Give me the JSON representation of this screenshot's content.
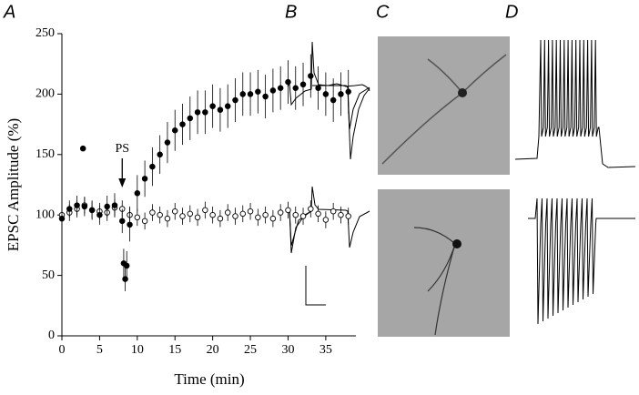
{
  "panel_labels": [
    "A",
    "B",
    "C",
    "D"
  ],
  "chart_data": {
    "type": "scatter",
    "xlabel": "Time (min)",
    "ylabel": "EPSC Amplitude (%)",
    "annotation": "PS",
    "xlim": [
      0,
      39
    ],
    "xticks": [
      0,
      5,
      10,
      15,
      20,
      25,
      30,
      35
    ],
    "ylim": [
      0,
      250
    ],
    "yticks": [
      0,
      50,
      100,
      150,
      200,
      250
    ],
    "series": [
      {
        "color": "#000000",
        "filled": true,
        "x": [
          0,
          1,
          2,
          2.8,
          3,
          4,
          5,
          6,
          7,
          8,
          8.2,
          8.4,
          8.6,
          9,
          10,
          11,
          12,
          13,
          14,
          15,
          16,
          17,
          18,
          19,
          20,
          21,
          22,
          23,
          24,
          25,
          26,
          27,
          28,
          29,
          30,
          31,
          32,
          33,
          34,
          35,
          36,
          37,
          38
        ],
        "values": [
          97,
          105,
          108,
          155,
          107,
          104,
          100,
          107,
          108,
          95,
          60,
          47,
          58,
          92,
          118,
          130,
          140,
          150,
          160,
          170,
          175,
          180,
          185,
          185,
          190,
          187,
          190,
          195,
          200,
          200,
          202,
          198,
          203,
          205,
          210,
          205,
          208,
          215,
          205,
          200,
          195,
          200,
          202
        ],
        "errors": [
          6,
          7,
          8,
          null,
          8,
          8,
          8,
          9,
          10,
          10,
          12,
          10,
          12,
          14,
          15,
          15,
          16,
          16,
          17,
          17,
          17,
          18,
          18,
          18,
          18,
          18,
          18,
          18,
          18,
          18,
          18,
          18,
          18,
          18,
          18,
          18,
          18,
          18,
          18,
          18,
          18,
          18,
          18
        ]
      },
      {
        "color": "#000000",
        "filled": false,
        "x": [
          0,
          1,
          2,
          3,
          4,
          5,
          6,
          7,
          8,
          9,
          10,
          11,
          12,
          13,
          14,
          15,
          16,
          17,
          18,
          19,
          20,
          21,
          22,
          23,
          24,
          25,
          26,
          27,
          28,
          29,
          30,
          31,
          32,
          33,
          34,
          35,
          36,
          37,
          38
        ],
        "values": [
          100,
          102,
          105,
          108,
          104,
          103,
          102,
          106,
          105,
          100,
          98,
          95,
          102,
          100,
          97,
          103,
          99,
          101,
          98,
          104,
          100,
          97,
          102,
          99,
          101,
          103,
          98,
          100,
          97,
          102,
          104,
          100,
          99,
          105,
          101,
          96,
          103,
          100,
          99
        ],
        "errors": [
          7,
          7,
          7,
          7,
          7,
          7,
          7,
          7,
          7,
          7,
          7,
          7,
          7,
          7,
          7,
          7,
          7,
          7,
          7,
          7,
          7,
          7,
          7,
          7,
          7,
          7,
          7,
          7,
          7,
          7,
          7,
          7,
          7,
          7,
          7,
          7,
          7,
          7,
          7
        ]
      }
    ]
  }
}
